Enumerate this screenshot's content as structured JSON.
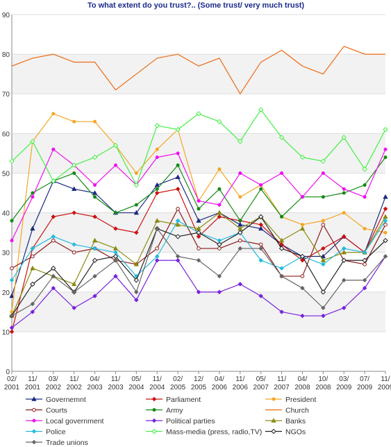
{
  "chart_data": {
    "type": "line",
    "title": "To what extent do you trust?..  (Some trust/ very much trust)",
    "xlabel": "",
    "ylabel": "",
    "ylim": [
      0,
      90
    ],
    "yticks": [
      0,
      10,
      20,
      30,
      40,
      50,
      60,
      70,
      80,
      90
    ],
    "grid": true,
    "legend_position": "bottom",
    "categories": [
      "02/\n2001",
      "11/\n2001",
      "03/\n2002",
      "11/\n2002",
      "04/\n2003",
      "11/\n2003",
      "05/\n2004",
      "11/\n2004",
      "02/\n2005",
      "12/\n2005",
      "04/\n2006",
      "11/\n2006",
      "05/\n2007",
      "11/\n2007",
      "04/\n2008",
      "10/\n2008",
      "03/\n2009",
      "07/\n2009",
      "11/\n2009"
    ],
    "series": [
      {
        "name": "Governemnt",
        "color": "#1a2a80",
        "marker": "triangle",
        "values": [
          19,
          36,
          48,
          46,
          45,
          40,
          40,
          47,
          49,
          38,
          40,
          37,
          36,
          32,
          29,
          29,
          34,
          30,
          44
        ]
      },
      {
        "name": "Parliament",
        "color": "#cc1111",
        "marker": "diamond",
        "values": [
          10,
          31,
          39,
          40,
          39,
          36,
          35,
          45,
          46,
          34,
          39,
          38,
          37,
          32,
          28,
          31,
          34,
          30,
          41
        ]
      },
      {
        "name": "President",
        "color": "#f5a623",
        "marker": "circle",
        "values": [
          15,
          58,
          65,
          63,
          63,
          57,
          50,
          56,
          61,
          43,
          51,
          44,
          47,
          39,
          37,
          38,
          40,
          36,
          35
        ]
      },
      {
        "name": "Courts",
        "color": "#8b1a1a",
        "marker": "circle-open",
        "values": [
          26,
          29,
          33,
          30,
          31,
          28,
          27,
          31,
          41,
          31,
          31,
          33,
          32,
          24,
          24,
          37,
          28,
          27,
          37
        ]
      },
      {
        "name": "Army",
        "color": "#138a13",
        "marker": "circle",
        "values": [
          38,
          45,
          48,
          50,
          44,
          40,
          42,
          46,
          52,
          41,
          46,
          38,
          46,
          39,
          44,
          44,
          45,
          47,
          54
        ]
      },
      {
        "name": "Church",
        "color": "#ee6a10",
        "marker": "none",
        "values": [
          77,
          79,
          80,
          78,
          78,
          71,
          75,
          79,
          80,
          77,
          79,
          70,
          78,
          81,
          77,
          75,
          82,
          80,
          80
        ]
      },
      {
        "name": "Local government",
        "color": "#ee11ee",
        "marker": "circle",
        "values": [
          33,
          44,
          56,
          52,
          47,
          52,
          47,
          54,
          55,
          43,
          42,
          50,
          47,
          50,
          44,
          50,
          46,
          44,
          56
        ]
      },
      {
        "name": "Political parties",
        "color": "#7722dd",
        "marker": "diamond",
        "values": [
          11,
          15,
          21,
          16,
          19,
          24,
          18,
          28,
          28,
          20,
          20,
          22,
          19,
          15,
          14,
          14,
          16,
          21,
          29
        ]
      },
      {
        "name": "Banks",
        "color": "#8a8a10",
        "marker": "triangle",
        "values": [
          14,
          26,
          24,
          22,
          33,
          31,
          27,
          38,
          37,
          36,
          40,
          36,
          39,
          33,
          36,
          28,
          30,
          30,
          39
        ]
      },
      {
        "name": "Police",
        "color": "#22bbe0",
        "marker": "diamond",
        "values": [
          23,
          31,
          34,
          32,
          31,
          30,
          24,
          29,
          38,
          35,
          33,
          35,
          28,
          26,
          29,
          27,
          31,
          30,
          38
        ]
      },
      {
        "name": "Mass-media (press, radio,TV)",
        "color": "#44ee44",
        "marker": "diamond-open",
        "values": [
          53,
          58,
          48,
          52,
          54,
          57,
          47,
          62,
          61,
          65,
          63,
          58,
          66,
          59,
          54,
          53,
          59,
          51,
          61
        ]
      },
      {
        "name": "NGOs",
        "color": "#222222",
        "marker": "diamond-open",
        "values": [
          14,
          22,
          26,
          20,
          28,
          29,
          23,
          36,
          34,
          35,
          32,
          35,
          39,
          31,
          29,
          20,
          28,
          28,
          33
        ]
      },
      {
        "name": "Trade unions",
        "color": "#666666",
        "marker": "diamond",
        "values": [
          14,
          17,
          24,
          20,
          24,
          28,
          20,
          36,
          29,
          28,
          24,
          31,
          31,
          24,
          21,
          16,
          23,
          23,
          29
        ]
      }
    ]
  }
}
